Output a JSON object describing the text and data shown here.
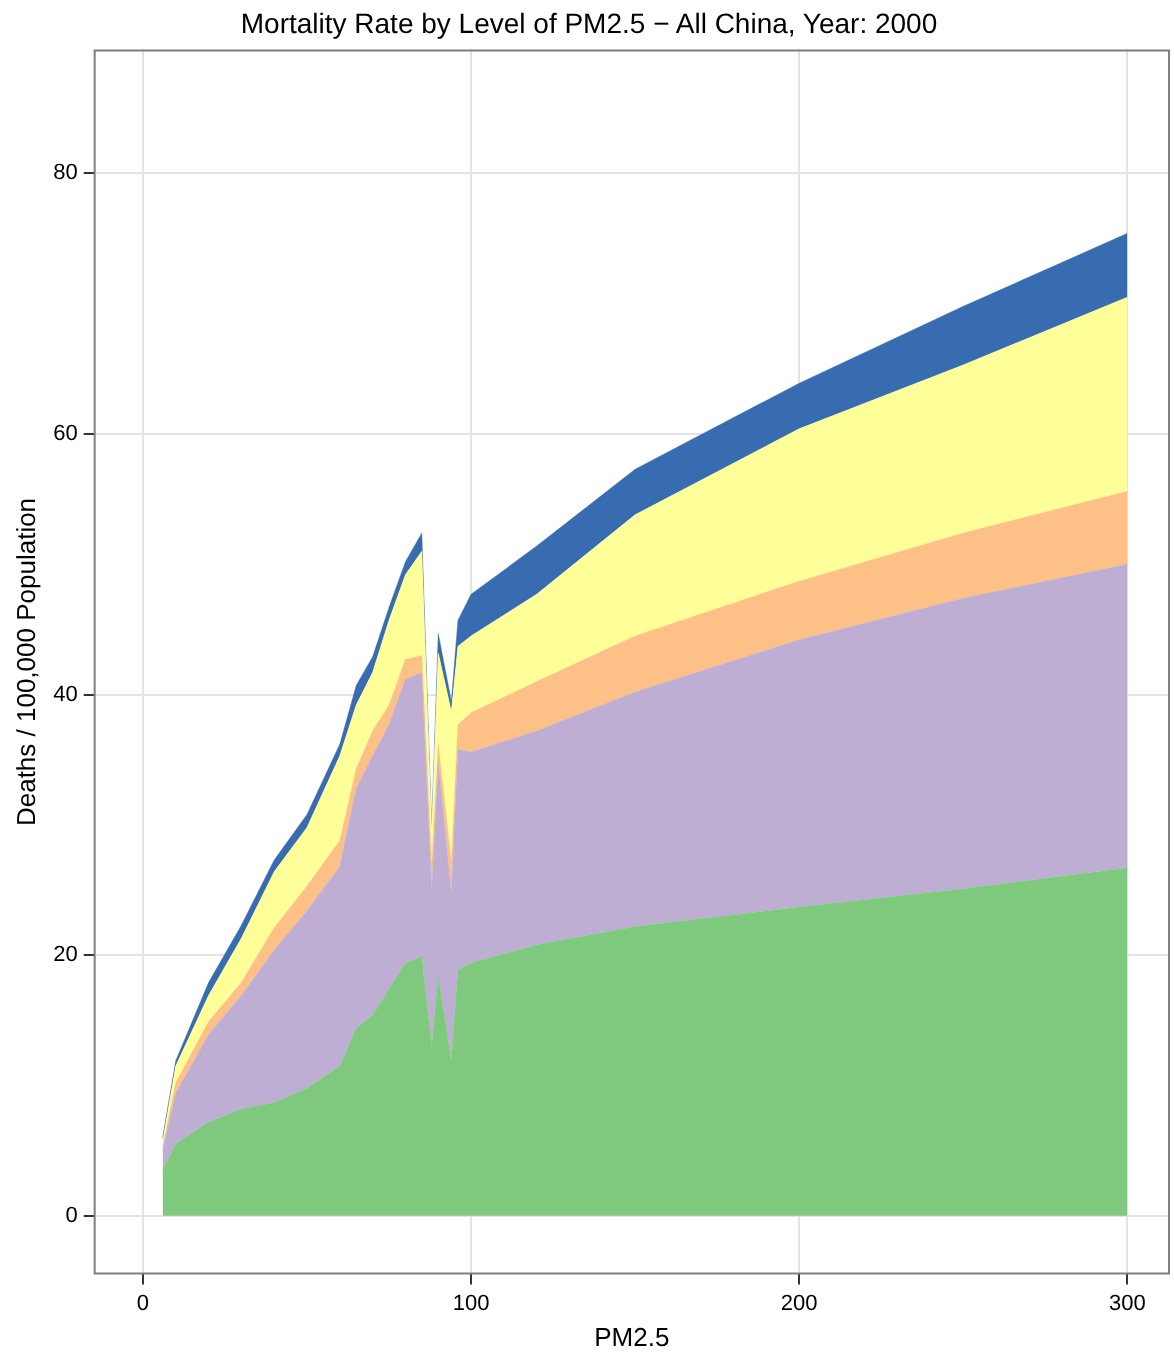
{
  "chart_data": {
    "type": "area",
    "title": "Mortality Rate by Level of PM2.5 − All China, Year: 2000",
    "xlabel": "PM2.5",
    "ylabel": "Deaths / 100,000 Population",
    "x": [
      6,
      10,
      20,
      30,
      40,
      50,
      60,
      65,
      70,
      75,
      80,
      85,
      88,
      90,
      94,
      96,
      100,
      120,
      150,
      200,
      250,
      300
    ],
    "series": [
      {
        "color": "#7fc97f",
        "values": [
          3.5,
          5.5,
          7.2,
          8.2,
          8.7,
          9.8,
          11.5,
          14.4,
          15.4,
          17.4,
          19.4,
          19.9,
          13.0,
          18.4,
          11.9,
          18.9,
          19.4,
          20.8,
          22.2,
          23.7,
          25.1,
          26.7
        ]
      },
      {
        "color": "#beaed4",
        "values": [
          1.5,
          3.9,
          6.7,
          8.7,
          11.7,
          13.6,
          15.3,
          18.4,
          19.9,
          20.3,
          21.8,
          21.8,
          12.0,
          16.4,
          12.9,
          16.9,
          16.2,
          16.4,
          18.0,
          20.5,
          22.3,
          23.3
        ]
      },
      {
        "color": "#fdc086",
        "values": [
          0.3,
          0.8,
          1.0,
          1.0,
          1.7,
          1.9,
          2.0,
          1.5,
          1.9,
          1.5,
          1.5,
          1.3,
          2.0,
          1.4,
          2.3,
          1.9,
          3.0,
          3.8,
          4.3,
          4.5,
          5.0,
          5.6
        ]
      },
      {
        "color": "#ffff99",
        "values": [
          0.4,
          1.3,
          2.0,
          3.4,
          4.3,
          4.5,
          6.5,
          4.9,
          4.5,
          6.5,
          6.5,
          8.0,
          2.5,
          7.0,
          11.6,
          6.0,
          5.9,
          6.7,
          9.3,
          11.7,
          12.9,
          14.9
        ]
      },
      {
        "color": "#386cb0",
        "values": [
          0.3,
          0.4,
          1.0,
          1.0,
          0.9,
          1.0,
          0.9,
          1.5,
          1.2,
          1.0,
          1.0,
          1.4,
          0.5,
          1.5,
          0.8,
          2.0,
          3.2,
          3.7,
          3.5,
          3.5,
          4.5,
          4.9
        ]
      }
    ],
    "stacked": true,
    "xlim": [
      -15,
      313
    ],
    "ylim": [
      -4.5,
      89.5
    ],
    "xticks": [
      0,
      100,
      200,
      300
    ],
    "yticks": [
      0,
      20,
      40,
      60,
      80
    ],
    "grid": true
  }
}
